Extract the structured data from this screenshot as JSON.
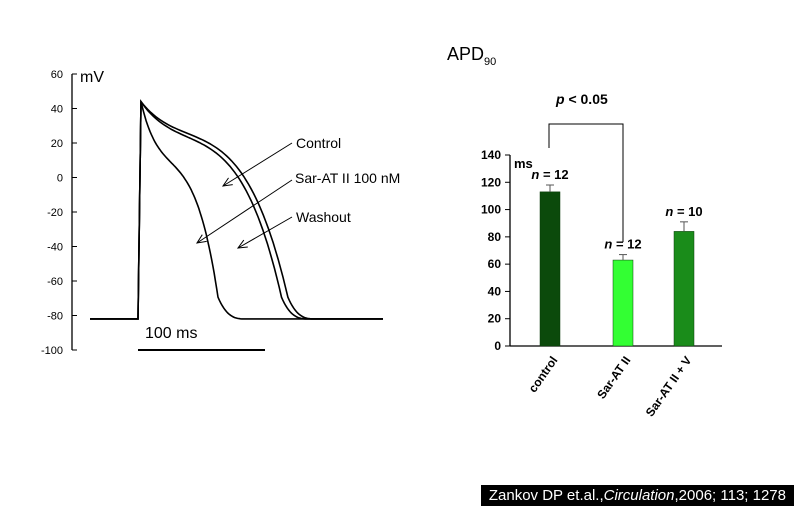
{
  "chart_data": [
    {
      "type": "line",
      "title": "",
      "xlabel": "",
      "ylabel": "mV",
      "ylim": [
        -100,
        60
      ],
      "yticks": [
        60,
        40,
        20,
        0,
        -20,
        -40,
        -60,
        -80,
        -100
      ],
      "scale_bar_label": "100 ms",
      "scale_bar_ms": 100,
      "series": [
        {
          "name": "Control",
          "resting_mV": -82,
          "peak_mV": 44,
          "plateau_mV": 20,
          "apd90_ms": 113
        },
        {
          "name": "Sar-AT II 100 nM",
          "resting_mV": -82,
          "peak_mV": 44,
          "plateau_mV": 5,
          "apd90_ms": 63
        },
        {
          "name": "Washout",
          "resting_mV": -82,
          "peak_mV": 44,
          "plateau_mV": 22,
          "apd90_ms": 118
        }
      ],
      "grid": false
    },
    {
      "type": "bar",
      "title": "APD",
      "title_subscript": "90",
      "ylabel": "ms",
      "ylim": [
        0,
        140
      ],
      "yticks": [
        0,
        20,
        40,
        60,
        80,
        100,
        120,
        140
      ],
      "categories": [
        "control",
        "Sar-AT II",
        "Sar-AT II + V"
      ],
      "values": [
        113,
        63,
        84
      ],
      "errors": [
        5,
        4,
        7
      ],
      "n_labels": [
        "= 12",
        "= 12",
        "= 10"
      ],
      "n_symbol": "n",
      "colors": [
        "#0b4a0b",
        "#33ff33",
        "#1a8c1a"
      ],
      "significance": {
        "label_italic": "p",
        "label_rest": " < 0.05",
        "between": [
          0,
          1
        ]
      },
      "grid": false
    }
  ],
  "citation": {
    "authors": "Zankov DP et.al.,",
    "journal": "Circulation",
    "rest": ",2006; 113; 1278"
  }
}
